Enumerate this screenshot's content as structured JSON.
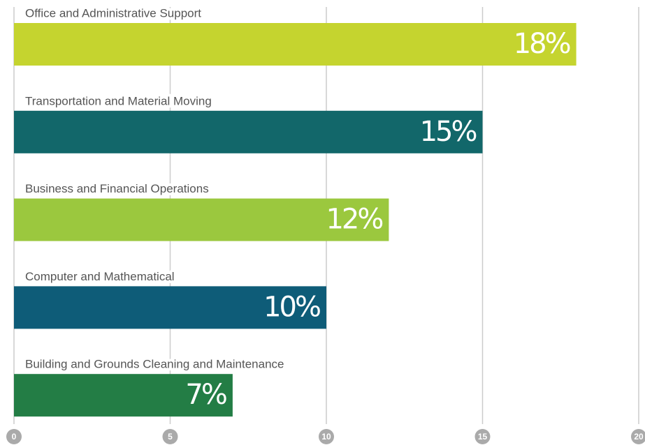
{
  "chart_data": {
    "type": "bar",
    "orientation": "horizontal",
    "categories": [
      "Office and Administrative Support",
      "Transportation and Material Moving",
      "Business and Financial Operations",
      "Computer and Mathematical",
      "Building and Grounds Cleaning and Maintenance"
    ],
    "values": [
      18,
      15,
      12,
      10,
      7
    ],
    "value_labels": [
      "18%",
      "15%",
      "12%",
      "10%",
      "7%"
    ],
    "colors": [
      "#c5d42f",
      "#12676a",
      "#9bc83e",
      "#0e5c78",
      "#237d45"
    ],
    "xlim": [
      0,
      20
    ],
    "xticks": [
      0,
      5,
      10,
      15,
      20
    ],
    "grid": true
  }
}
